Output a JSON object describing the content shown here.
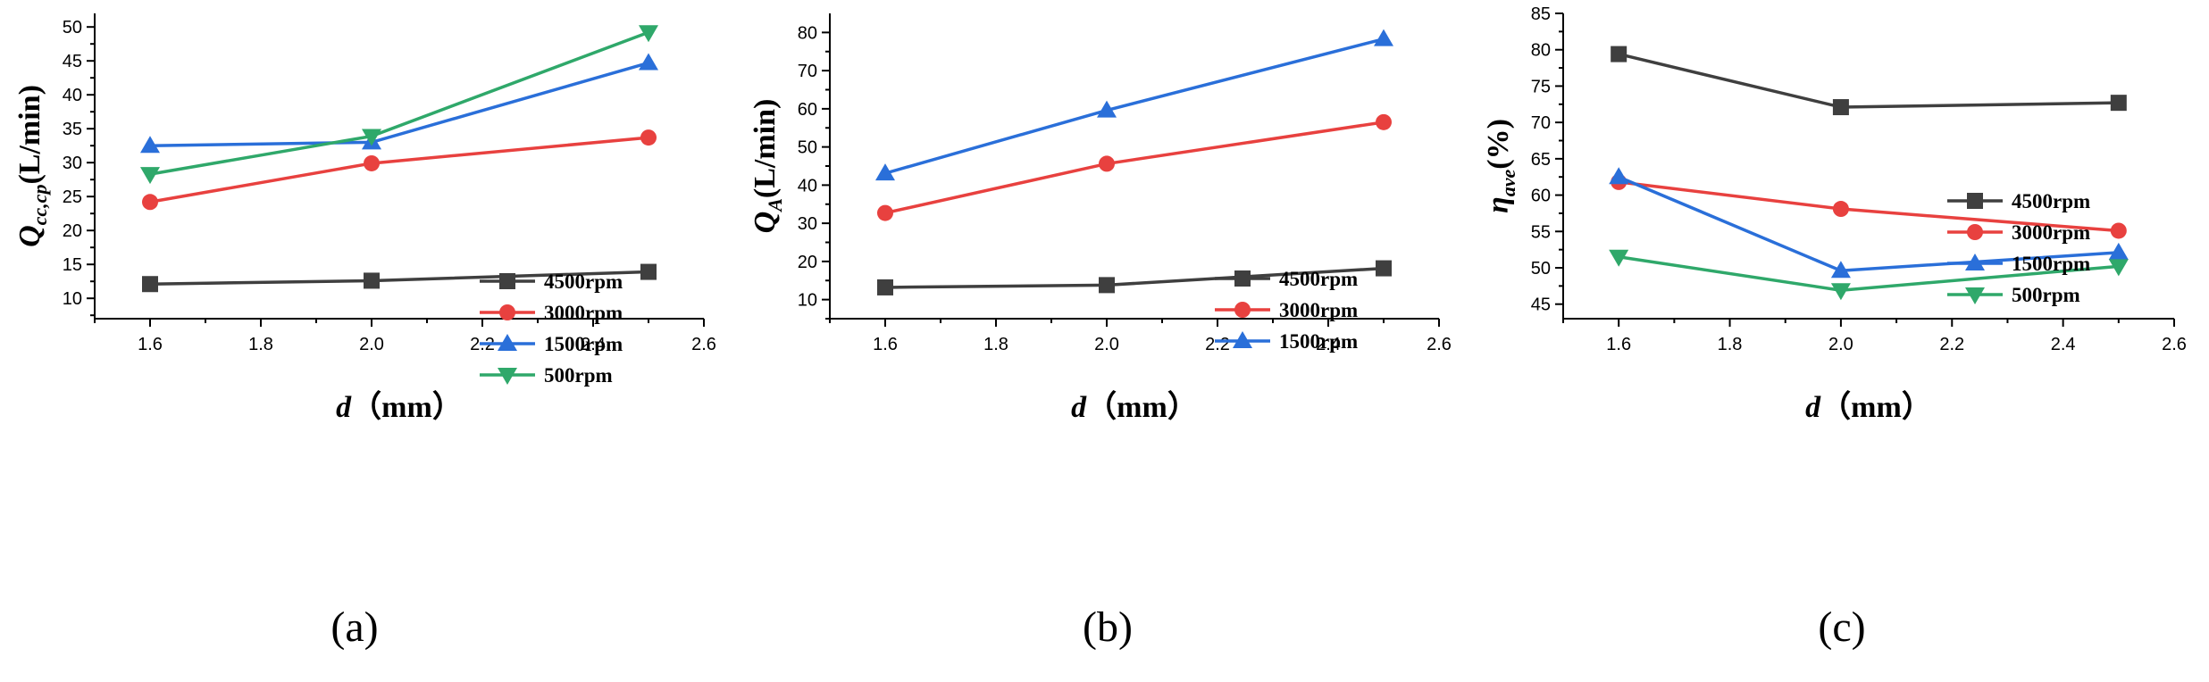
{
  "colors": {
    "4500rpm": "#3f3f3f",
    "3000rpm": "#e8413f",
    "1500rpm": "#2a6fd9",
    "500rpm": "#2fa86a",
    "axis": "#000000"
  },
  "chart_data": [
    {
      "type": "line",
      "panel_label": "(a)",
      "xlabel_var": "d",
      "xlabel_unit": "（mm）",
      "ylabel_var": "Q",
      "ylabel_sub": "cc,cp",
      "ylabel_unit": "(L/min)",
      "x": [
        1.6,
        2.0,
        2.5
      ],
      "xlim": [
        1.5,
        2.6
      ],
      "xticks": [
        1.6,
        1.8,
        2.0,
        2.2,
        2.4,
        2.6
      ],
      "xtick_labels": [
        "1.6",
        "1.8",
        "2.0",
        "2.2",
        "2.4",
        "2.6"
      ],
      "ylim": [
        7,
        52
      ],
      "yticks": [
        10,
        15,
        20,
        25,
        30,
        35,
        40,
        45,
        50
      ],
      "ytick_labels": [
        "10",
        "15",
        "20",
        "25",
        "30",
        "35",
        "40",
        "45",
        "50"
      ],
      "legend_position": "middle-right",
      "series": [
        {
          "name": "4500rpm",
          "label": "4500rpm",
          "marker": "square",
          "values": [
            12.1,
            12.6,
            13.9
          ]
        },
        {
          "name": "3000rpm",
          "label": "3000rpm",
          "marker": "circle",
          "values": [
            24.2,
            29.9,
            33.7
          ]
        },
        {
          "name": "1500rpm",
          "label": "1500rpm",
          "marker": "triangle-up",
          "values": [
            32.5,
            33.0,
            44.7
          ]
        },
        {
          "name": "500rpm",
          "label": "500rpm",
          "marker": "triangle-down",
          "values": [
            28.3,
            33.9,
            49.2
          ]
        }
      ]
    },
    {
      "type": "line",
      "panel_label": "(b)",
      "xlabel_var": "d",
      "xlabel_unit": "（mm）",
      "ylabel_var": "Q",
      "ylabel_sub": "A",
      "ylabel_unit": "(L/min)",
      "x": [
        1.6,
        2.0,
        2.5
      ],
      "xlim": [
        1.5,
        2.6
      ],
      "xticks": [
        1.6,
        1.8,
        2.0,
        2.2,
        2.4,
        2.6
      ],
      "xtick_labels": [
        "1.6",
        "1.8",
        "2.0",
        "2.2",
        "2.4",
        "2.6"
      ],
      "ylim": [
        5,
        85
      ],
      "yticks": [
        10,
        20,
        30,
        40,
        50,
        60,
        70,
        80
      ],
      "ytick_labels": [
        "10",
        "20",
        "30",
        "40",
        "50",
        "60",
        "70",
        "80"
      ],
      "legend_position": "middle-right",
      "series": [
        {
          "name": "4500rpm",
          "label": "4500rpm",
          "marker": "square",
          "values": [
            13.2,
            13.8,
            18.2
          ]
        },
        {
          "name": "3000rpm",
          "label": "3000rpm",
          "marker": "circle",
          "values": [
            32.7,
            45.6,
            56.5
          ]
        },
        {
          "name": "1500rpm",
          "label": "1500rpm",
          "marker": "triangle-up",
          "values": [
            43.1,
            59.6,
            78.3
          ]
        }
      ]
    },
    {
      "type": "line",
      "panel_label": "(c)",
      "xlabel_var": "d",
      "xlabel_unit": "（mm）",
      "ylabel_var": "η",
      "ylabel_sub": "ave",
      "ylabel_unit": "(%)",
      "x": [
        1.6,
        2.0,
        2.5
      ],
      "xlim": [
        1.5,
        2.6
      ],
      "xticks": [
        1.6,
        1.8,
        2.0,
        2.2,
        2.4,
        2.6
      ],
      "xtick_labels": [
        "1.6",
        "1.8",
        "2.0",
        "2.2",
        "2.4",
        "2.6"
      ],
      "ylim": [
        43,
        85
      ],
      "yticks": [
        45,
        50,
        55,
        60,
        65,
        70,
        75,
        80,
        85
      ],
      "ytick_labels": [
        "45",
        "50",
        "55",
        "60",
        "65",
        "70",
        "75",
        "80",
        "85"
      ],
      "legend_position": "upper-right",
      "series": [
        {
          "name": "4500rpm",
          "label": "4500rpm",
          "marker": "square",
          "values": [
            79.4,
            72.1,
            72.7
          ]
        },
        {
          "name": "3000rpm",
          "label": "3000rpm",
          "marker": "circle",
          "values": [
            61.8,
            58.1,
            55.1
          ]
        },
        {
          "name": "1500rpm",
          "label": "1500rpm",
          "marker": "triangle-up",
          "values": [
            62.5,
            49.6,
            52.1
          ]
        },
        {
          "name": "500rpm",
          "label": "500rpm",
          "marker": "triangle-down",
          "values": [
            51.5,
            46.9,
            50.2
          ]
        }
      ]
    }
  ]
}
